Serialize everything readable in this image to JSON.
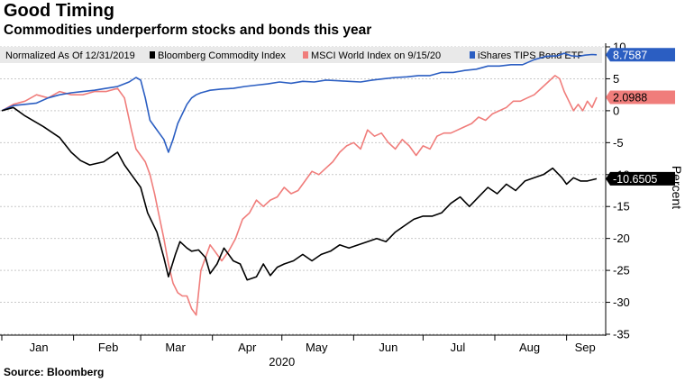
{
  "title": "Good Timing",
  "subtitle": "Commodities underperform stocks and bonds this year",
  "source": "Source: Bloomberg",
  "chart_data": {
    "type": "line",
    "legend_note": "Normalized As Of 12/31/2019",
    "legend_placement": "top",
    "ylabel": "Percent",
    "ylim": [
      -35,
      10
    ],
    "yticks": [
      10,
      5,
      0,
      -5,
      -10,
      -15,
      -20,
      -25,
      -30,
      -35
    ],
    "xlim": [
      0,
      257
    ],
    "xticks": [
      {
        "label": "Jan",
        "x": 16
      },
      {
        "label": "Feb",
        "x": 46
      },
      {
        "label": "Mar",
        "x": 75
      },
      {
        "label": "Apr",
        "x": 106
      },
      {
        "label": "May",
        "x": 136
      },
      {
        "label": "Jun",
        "x": 167
      },
      {
        "label": "Jul",
        "x": 197
      },
      {
        "label": "Aug",
        "x": 228
      },
      {
        "label": "Sep",
        "x": 252
      }
    ],
    "year_label": "2020",
    "grid": true,
    "series": [
      {
        "name": "Bloomberg Commodity Index",
        "color": "#000000",
        "last_label": "-10.6505",
        "x": [
          0,
          5,
          10,
          18,
          25,
          30,
          34,
          38,
          44,
          50,
          53,
          56,
          60,
          63,
          67,
          70,
          72,
          75,
          77,
          80,
          82,
          85,
          88,
          90,
          93,
          96,
          100,
          103,
          106,
          110,
          113,
          116,
          119,
          122,
          126,
          130,
          134,
          138,
          142,
          146,
          150,
          154,
          158,
          162,
          166,
          170,
          174,
          178,
          182,
          186,
          190,
          194,
          198,
          202,
          206,
          210,
          214,
          218,
          222,
          226,
          230,
          234,
          238,
          242,
          244,
          247,
          250,
          253,
          257
        ],
        "y": [
          0,
          0.5,
          -0.8,
          -2.5,
          -4.2,
          -6.5,
          -7.8,
          -8.5,
          -8,
          -6.5,
          -8.5,
          -10,
          -12,
          -16,
          -19,
          -23,
          -26,
          -22.5,
          -20.5,
          -21.5,
          -22,
          -21.8,
          -23,
          -25.5,
          -24,
          -21.5,
          -23.5,
          -24,
          -26.5,
          -26,
          -24,
          -25.8,
          -24.5,
          -24,
          -23.5,
          -22.5,
          -23.5,
          -22.5,
          -22,
          -21,
          -21.5,
          -21,
          -20.5,
          -20,
          -20.5,
          -19,
          -18,
          -17,
          -16.5,
          -16.5,
          -16,
          -14.5,
          -13.5,
          -15,
          -13.5,
          -12,
          -13,
          -11.5,
          -12.5,
          -11,
          -10.5,
          -10,
          -9,
          -10.5,
          -11.5,
          -10.5,
          -11,
          -11,
          -10.65
        ]
      },
      {
        "name": "MSCI World Index on 9/15/20",
        "color": "#f07d7b",
        "last_label": "2.0988",
        "x": [
          0,
          5,
          10,
          15,
          20,
          25,
          30,
          35,
          40,
          45,
          50,
          53,
          56,
          58,
          60,
          62,
          64,
          66,
          68,
          70,
          72,
          74,
          76,
          78,
          80,
          82,
          84,
          86,
          88,
          90,
          92,
          95,
          98,
          101,
          104,
          107,
          110,
          113,
          116,
          119,
          122,
          125,
          128,
          131,
          134,
          137,
          140,
          143,
          146,
          149,
          152,
          155,
          158,
          161,
          164,
          167,
          170,
          173,
          176,
          179,
          182,
          185,
          188,
          191,
          194,
          197,
          200,
          203,
          206,
          209,
          212,
          215,
          218,
          221,
          224,
          227,
          230,
          233,
          236,
          239,
          241,
          243,
          245,
          247,
          249,
          251,
          253,
          255,
          257
        ],
        "y": [
          0,
          1,
          1.5,
          2.5,
          2,
          3,
          2.5,
          2.5,
          3,
          3,
          3.5,
          2,
          -3,
          -6,
          -7,
          -8,
          -10,
          -13,
          -16.5,
          -20,
          -24,
          -27,
          -28.5,
          -29,
          -29,
          -31,
          -32,
          -25,
          -23,
          -21,
          -22,
          -23.5,
          -22,
          -20,
          -17,
          -16,
          -14,
          -15,
          -14,
          -13.5,
          -12,
          -13,
          -12.5,
          -11,
          -9.5,
          -10,
          -9,
          -8,
          -6.5,
          -5.5,
          -5,
          -6,
          -3,
          -4,
          -3.5,
          -5,
          -6,
          -4.5,
          -5.5,
          -7,
          -5.5,
          -6,
          -4,
          -3.5,
          -3.5,
          -3,
          -2.5,
          -2,
          -1,
          -1.5,
          -0.5,
          0,
          0.5,
          1.5,
          1.5,
          2,
          2.5,
          3.5,
          4.5,
          5.5,
          5,
          3,
          1.5,
          0,
          1,
          0,
          1.5,
          0.5,
          2.1
        ]
      },
      {
        "name": "iShares TIPS Bond ETF",
        "color": "#2b5ec2",
        "last_label": "8.7587",
        "x": [
          0,
          5,
          10,
          15,
          20,
          25,
          30,
          35,
          40,
          45,
          50,
          55,
          58,
          60,
          62,
          64,
          66,
          68,
          70,
          72,
          74,
          76,
          78,
          80,
          82,
          84,
          86,
          88,
          90,
          95,
          100,
          105,
          110,
          115,
          120,
          125,
          130,
          135,
          140,
          145,
          150,
          155,
          160,
          165,
          170,
          175,
          180,
          185,
          190,
          195,
          200,
          205,
          210,
          215,
          220,
          225,
          230,
          235,
          240,
          243,
          246,
          249,
          252,
          255,
          257
        ],
        "y": [
          0,
          0.8,
          1,
          1.2,
          2,
          2.5,
          2.8,
          3,
          3.2,
          3.5,
          3.8,
          4.5,
          5.2,
          4.8,
          2,
          -1.5,
          -2.5,
          -3.5,
          -4.5,
          -6.5,
          -4.5,
          -2,
          -0.5,
          1,
          2,
          2.5,
          2.8,
          3,
          3.2,
          3.4,
          3.5,
          3.8,
          4,
          4.2,
          4.5,
          4.3,
          4.6,
          4.5,
          4.8,
          4.7,
          4.6,
          4.5,
          4.8,
          5,
          5.2,
          5.3,
          5.5,
          5.5,
          6,
          6,
          6.3,
          6.5,
          7,
          7,
          7.2,
          7.2,
          8,
          8.5,
          8.6,
          9,
          8.6,
          8.5,
          8.7,
          8.8,
          8.76
        ]
      }
    ]
  }
}
